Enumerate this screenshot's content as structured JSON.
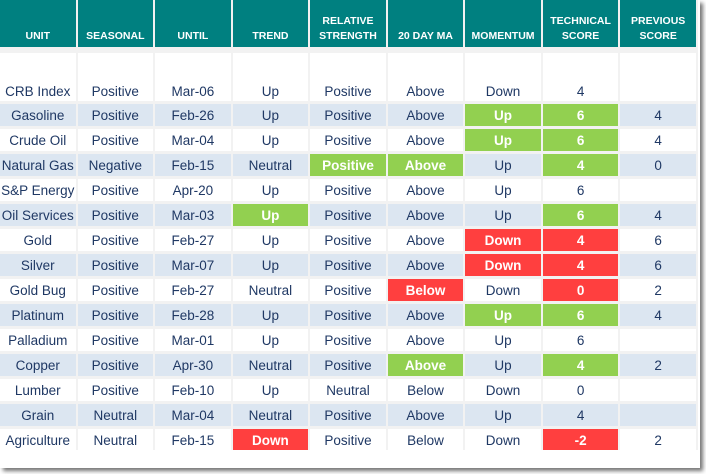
{
  "columns": [
    "UNIT",
    "SEASONAL",
    "UNTIL",
    "TREND",
    "RELATIVE\nSTRENGTH",
    "20 DAY MA",
    "MOMENTUM",
    "TECHNICAL\nSCORE",
    "PREVIOUS\nSCORE"
  ],
  "colors": {
    "header": "#008080",
    "alt_row": "#dce6f1",
    "positive_highlight": "#92d050",
    "negative_highlight": "#ff3f3f",
    "text": "#1f3864"
  },
  "rows": [
    {
      "cells": [
        "CRB Index",
        "Positive",
        "Mar-06",
        "Up",
        "Positive",
        "Above",
        "Down",
        "4",
        ""
      ],
      "hl": [
        "",
        "",
        "",
        "",
        "",
        "",
        "",
        "",
        ""
      ]
    },
    {
      "cells": [
        "Gasoline",
        "Positive",
        "Feb-26",
        "Up",
        "Positive",
        "Above",
        "Up",
        "6",
        "4"
      ],
      "hl": [
        "",
        "",
        "",
        "",
        "",
        "",
        "green",
        "green",
        ""
      ]
    },
    {
      "cells": [
        "Crude Oil",
        "Positive",
        "Mar-04",
        "Up",
        "Positive",
        "Above",
        "Up",
        "6",
        "4"
      ],
      "hl": [
        "",
        "",
        "",
        "",
        "",
        "",
        "green",
        "green",
        ""
      ]
    },
    {
      "cells": [
        "Natural Gas",
        "Negative",
        "Feb-15",
        "Neutral",
        "Positive",
        "Above",
        "Up",
        "4",
        "0"
      ],
      "hl": [
        "",
        "",
        "",
        "",
        "green",
        "green",
        "",
        "green",
        ""
      ]
    },
    {
      "cells": [
        "S&P Energy",
        "Positive",
        "Apr-20",
        "Up",
        "Positive",
        "Above",
        "Up",
        "6",
        ""
      ],
      "hl": [
        "",
        "",
        "",
        "",
        "",
        "",
        "",
        "",
        ""
      ]
    },
    {
      "cells": [
        "Oil Services",
        "Positive",
        "Mar-03",
        "Up",
        "Positive",
        "Above",
        "Up",
        "6",
        "4"
      ],
      "hl": [
        "",
        "",
        "",
        "green",
        "",
        "",
        "",
        "green",
        ""
      ]
    },
    {
      "cells": [
        "Gold",
        "Positive",
        "Feb-27",
        "Up",
        "Positive",
        "Above",
        "Down",
        "4",
        "6"
      ],
      "hl": [
        "",
        "",
        "",
        "",
        "",
        "",
        "red",
        "red",
        ""
      ]
    },
    {
      "cells": [
        "Silver",
        "Positive",
        "Mar-07",
        "Up",
        "Positive",
        "Above",
        "Down",
        "4",
        "6"
      ],
      "hl": [
        "",
        "",
        "",
        "",
        "",
        "",
        "red",
        "red",
        ""
      ]
    },
    {
      "cells": [
        "Gold Bug",
        "Positive",
        "Feb-27",
        "Neutral",
        "Positive",
        "Below",
        "Down",
        "0",
        "2"
      ],
      "hl": [
        "",
        "",
        "",
        "",
        "",
        "red",
        "",
        "red",
        ""
      ]
    },
    {
      "cells": [
        "Platinum",
        "Positive",
        "Feb-28",
        "Up",
        "Positive",
        "Above",
        "Up",
        "6",
        "4"
      ],
      "hl": [
        "",
        "",
        "",
        "",
        "",
        "",
        "green",
        "green",
        ""
      ]
    },
    {
      "cells": [
        "Palladium",
        "Positive",
        "Mar-01",
        "Up",
        "Positive",
        "Above",
        "Up",
        "6",
        ""
      ],
      "hl": [
        "",
        "",
        "",
        "",
        "",
        "",
        "",
        "",
        ""
      ]
    },
    {
      "cells": [
        "Copper",
        "Positive",
        "Apr-30",
        "Neutral",
        "Positive",
        "Above",
        "Up",
        "4",
        "2"
      ],
      "hl": [
        "",
        "",
        "",
        "",
        "",
        "green",
        "",
        "green",
        ""
      ]
    },
    {
      "cells": [
        "Lumber",
        "Positive",
        "Feb-10",
        "Up",
        "Neutral",
        "Below",
        "Down",
        "0",
        ""
      ],
      "hl": [
        "",
        "",
        "",
        "",
        "",
        "",
        "",
        "",
        ""
      ]
    },
    {
      "cells": [
        "Grain",
        "Neutral",
        "Mar-04",
        "Neutral",
        "Positive",
        "Above",
        "Up",
        "4",
        ""
      ],
      "hl": [
        "",
        "",
        "",
        "",
        "",
        "",
        "",
        "",
        ""
      ]
    },
    {
      "cells": [
        "Agriculture",
        "Neutral",
        "Feb-15",
        "Down",
        "Positive",
        "Below",
        "Down",
        "-2",
        "2"
      ],
      "hl": [
        "",
        "",
        "",
        "red",
        "",
        "",
        "",
        "red",
        ""
      ]
    }
  ]
}
